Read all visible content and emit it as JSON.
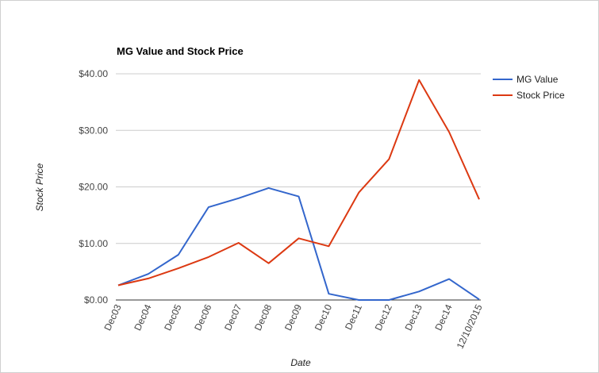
{
  "chart_data": {
    "type": "line",
    "title": "MG Value and Stock Price",
    "xlabel": "Date",
    "ylabel": "Stock Price",
    "categories": [
      "Dec03",
      "Dec04",
      "Dec05",
      "Dec06",
      "Dec07",
      "Dec08",
      "Dec09",
      "Dec10",
      "Dec11",
      "Dec12",
      "Dec13",
      "Dec14",
      "12/10/2015"
    ],
    "ylim": [
      0,
      40
    ],
    "yticks": [
      0,
      10,
      20,
      30,
      40
    ],
    "ytick_labels": [
      "$0.00",
      "$10.00",
      "$20.00",
      "$30.00",
      "$40.00"
    ],
    "grid": true,
    "legend_position": "top-right",
    "series": [
      {
        "name": "MG Value",
        "color": "#3366cc",
        "values": [
          2.6,
          4.6,
          8.0,
          16.4,
          18.0,
          19.8,
          18.3,
          1.1,
          0.0,
          0.0,
          1.5,
          3.7,
          0.1
        ]
      },
      {
        "name": "Stock Price",
        "color": "#dc3912",
        "values": [
          2.6,
          3.8,
          5.6,
          7.6,
          10.1,
          6.5,
          10.9,
          9.5,
          19.0,
          24.9,
          38.9,
          29.7,
          17.8
        ]
      }
    ]
  }
}
